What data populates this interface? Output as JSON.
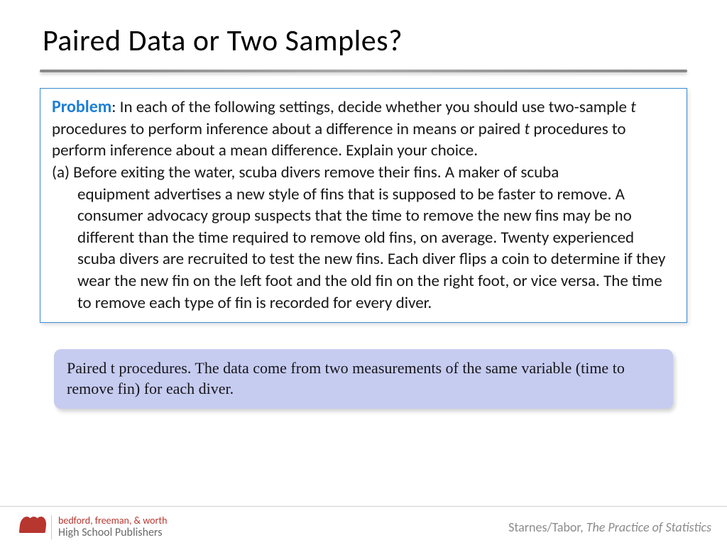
{
  "title": "Paired Data or Two Samples?",
  "problem": {
    "label": "Problem",
    "intro_1": ": In each of the following settings, decide whether you should use two-sample ",
    "t1": "t",
    "intro_2": " procedures to perform inference about a difference in means or paired ",
    "t2": "t",
    "intro_3": " procedures to perform inference about a mean difference. Explain your choice.",
    "part_a_lead": "(a) Before exiting the water, scuba divers remove their fins. A maker of scuba",
    "part_a_body": "equipment advertises a new style of fins that is supposed to be faster to remove. A consumer advocacy group suspects that the time to remove the new fins may be no different than the time required to remove old fins, on average. Twenty experienced scuba divers are recruited to test the new fins. Each diver flips a coin to determine if they wear the new fin on the left foot and the old fin on the right foot, or vice versa. The time to remove each type of fin is recorded for every diver."
  },
  "answer": "Paired t procedures. The data come from two measurements of the same variable (time to remove fin) for each diver.",
  "footer": {
    "publisher_line1": "bedford, freeman, & worth",
    "publisher_line2": "High School Publishers",
    "authors": "Starnes/Tabor, ",
    "book_title": "The Practice of Statistics"
  },
  "colors": {
    "title_color": "#000000",
    "problem_border": "#3a8ad4",
    "problem_label": "#1e7fd6",
    "answer_bg": "#c6ccf0",
    "logo_red": "#b7362f",
    "footer_gray": "#8c8c8c"
  }
}
